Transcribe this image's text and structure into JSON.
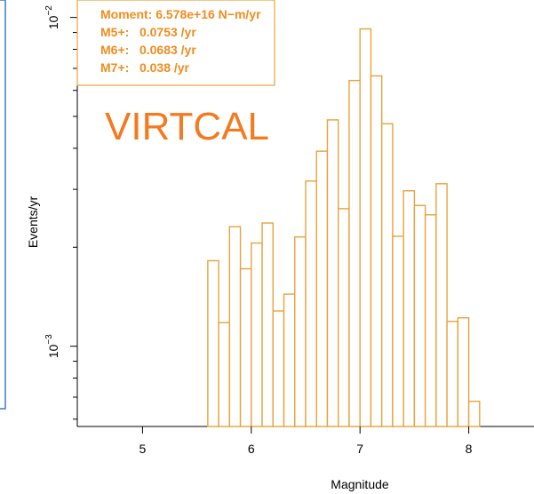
{
  "colors": {
    "bar_stroke": "#E8A33C",
    "bar_fill": "#FFFFFF",
    "stats_text": "#F28C1E",
    "watermark": "#F47A20",
    "axis": "#000000",
    "side_panel_border": "#3A7BC8"
  },
  "chart_data": {
    "type": "bar",
    "subtype": "histogram",
    "xlabel": "Magnitude",
    "ylabel": "Events/yr",
    "y_scale": "log",
    "xlim": [
      4.4,
      8.6
    ],
    "ylim": [
      0.00057,
      0.0113
    ],
    "x_ticks": [
      {
        "value": 5,
        "label": "5"
      },
      {
        "value": 6,
        "label": "6"
      },
      {
        "value": 7,
        "label": "7"
      },
      {
        "value": 8,
        "label": "8"
      }
    ],
    "y_ticks": [
      {
        "value": 0.01,
        "base": "10",
        "exp": "−2"
      },
      {
        "value": 0.001,
        "base": "10",
        "exp": "−3"
      }
    ],
    "bin_width": 0.1,
    "bin_starts": [
      5.6,
      5.7,
      5.8,
      5.9,
      6.0,
      6.1,
      6.2,
      6.3,
      6.4,
      6.5,
      6.6,
      6.7,
      6.8,
      6.9,
      7.0,
      7.1,
      7.2,
      7.3,
      7.4,
      7.5,
      7.6,
      7.7,
      7.8,
      7.9,
      8.0
    ],
    "values": [
      0.00182,
      0.00118,
      0.00231,
      0.00172,
      0.00206,
      0.00237,
      0.00128,
      0.00144,
      0.00215,
      0.00318,
      0.00392,
      0.00488,
      0.00262,
      0.00643,
      0.00923,
      0.00664,
      0.00475,
      0.00216,
      0.00297,
      0.00268,
      0.00251,
      0.00312,
      0.00119,
      0.00122,
      0.00068
    ],
    "annotations": {
      "moment": "Moment: 6.578e+16 N−m/yr",
      "m5": "M5+:   0.0753 /yr",
      "m6": "M6+:   0.0683 /yr",
      "m7": "M7+:   0.038 /yr",
      "watermark": "VIRTCAL"
    },
    "legend_placement": "top-left",
    "grid": false
  }
}
